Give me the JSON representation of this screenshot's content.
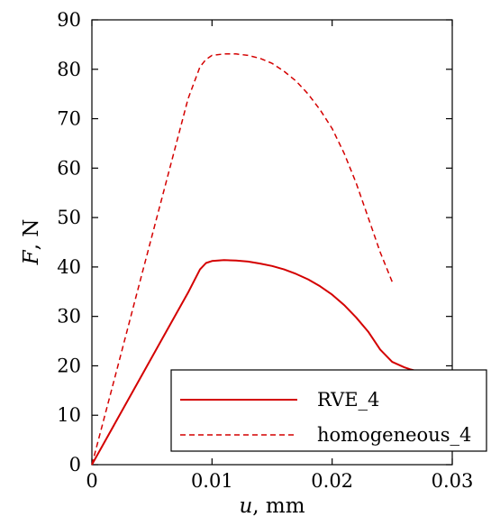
{
  "chart_data": {
    "type": "line",
    "xlabel_var": "u",
    "xlabel_unit": ", mm",
    "ylabel_var": "F",
    "ylabel_unit": ", N",
    "xlim": [
      0,
      0.03
    ],
    "ylim": [
      0,
      90
    ],
    "xticks": [
      0,
      0.01,
      0.02,
      0.03
    ],
    "xtick_labels": [
      "0",
      "0.01",
      "0.02",
      "0.03"
    ],
    "yticks": [
      0,
      10,
      20,
      30,
      40,
      50,
      60,
      70,
      80,
      90
    ],
    "ytick_labels": [
      "0",
      "10",
      "20",
      "30",
      "40",
      "50",
      "60",
      "70",
      "80",
      "90"
    ],
    "grid": false,
    "legend_position": "bottom-right",
    "series": [
      {
        "name": "RVE_4",
        "style": "solid",
        "color": "#d40000",
        "x": [
          0,
          0.002,
          0.004,
          0.006,
          0.008,
          0.009,
          0.0095,
          0.01,
          0.011,
          0.012,
          0.013,
          0.014,
          0.015,
          0.016,
          0.017,
          0.018,
          0.019,
          0.02,
          0.021,
          0.022,
          0.023,
          0.024,
          0.025,
          0.026,
          0.0265,
          0.0268
        ],
        "y": [
          0,
          8.7,
          17.4,
          26.1,
          34.8,
          39.5,
          40.8,
          41.2,
          41.4,
          41.3,
          41.1,
          40.7,
          40.2,
          39.5,
          38.6,
          37.5,
          36.1,
          34.4,
          32.3,
          29.8,
          26.9,
          23.3,
          20.8,
          19.7,
          19.3,
          19.1
        ]
      },
      {
        "name": "homogeneous_4",
        "style": "dashed",
        "color": "#d40000",
        "x": [
          0,
          0.002,
          0.004,
          0.006,
          0.008,
          0.009,
          0.0095,
          0.01,
          0.011,
          0.012,
          0.013,
          0.014,
          0.015,
          0.016,
          0.017,
          0.018,
          0.019,
          0.02,
          0.021,
          0.022,
          0.023,
          0.024,
          0.025
        ],
        "y": [
          0,
          18.5,
          37.0,
          55.5,
          74.0,
          80.5,
          82.0,
          82.8,
          83.1,
          83.1,
          82.8,
          82.2,
          81.2,
          79.6,
          77.6,
          75.0,
          71.8,
          68.0,
          63.0,
          57.0,
          50.0,
          43.0,
          37.0
        ]
      }
    ]
  }
}
